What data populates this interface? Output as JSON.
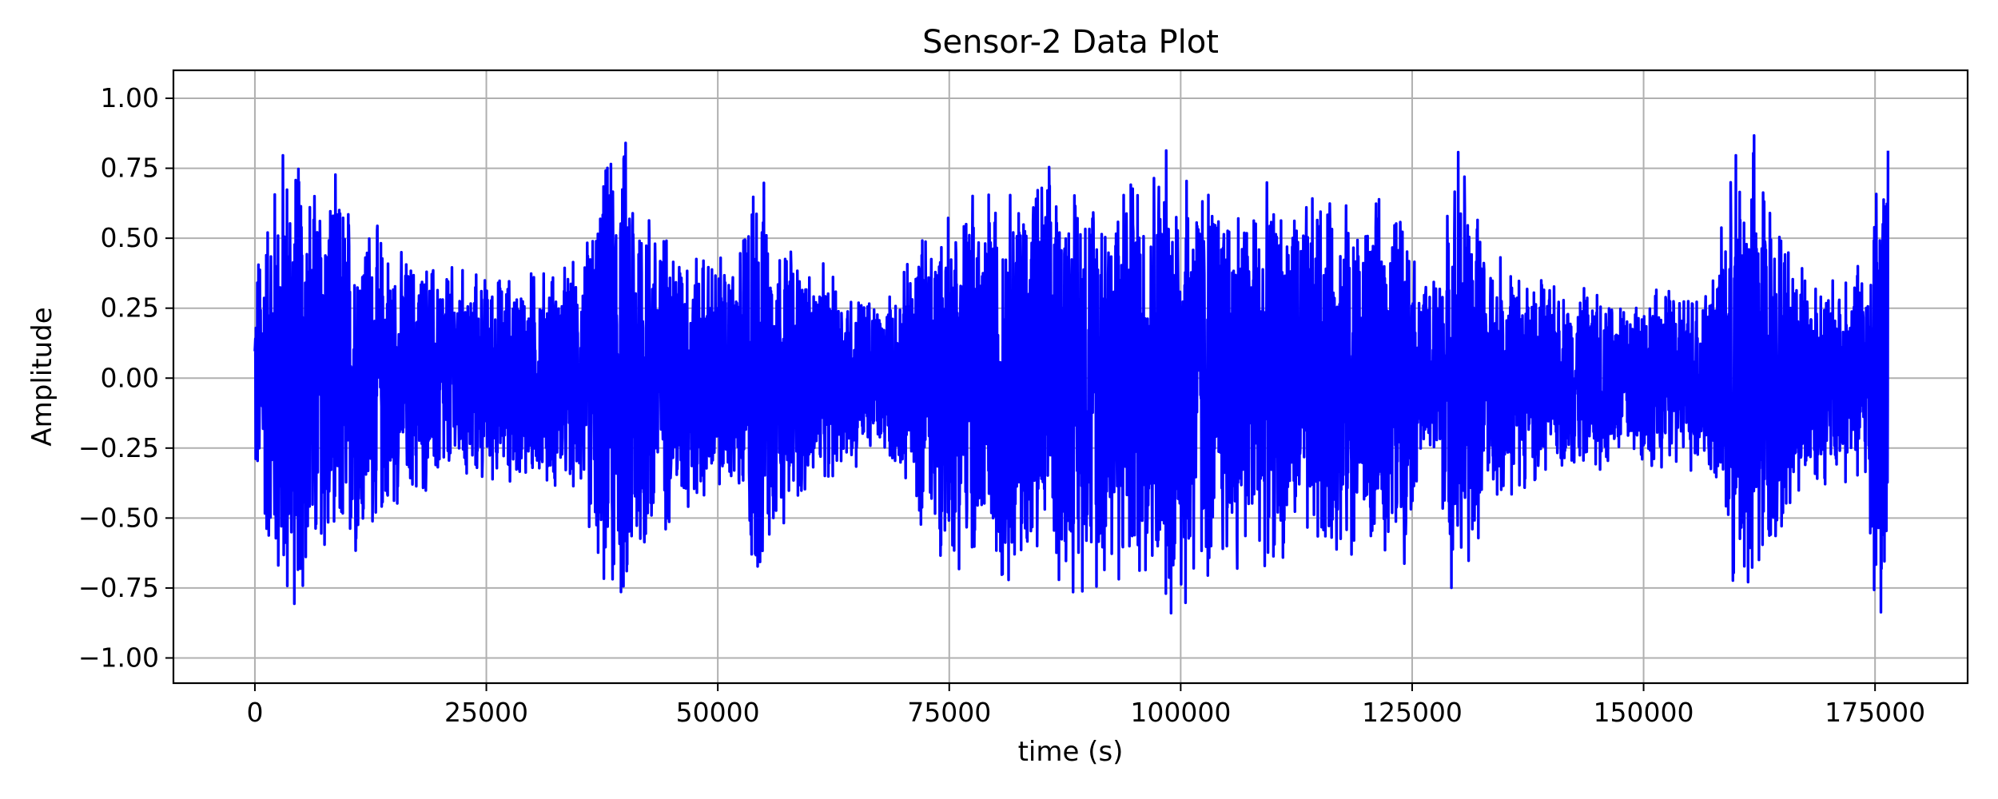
{
  "chart_data": {
    "type": "line",
    "title": "Sensor-2 Data Plot",
    "xlabel": "time (s)",
    "ylabel": "Amplitude",
    "xlim": [
      -8800,
      185000
    ],
    "ylim": [
      -1.09,
      1.1
    ],
    "xticks": [
      0,
      25000,
      50000,
      75000,
      100000,
      125000,
      150000,
      175000
    ],
    "xtick_labels": [
      "0",
      "25000",
      "50000",
      "75000",
      "100000",
      "125000",
      "150000",
      "175000"
    ],
    "yticks": [
      1.0,
      0.75,
      0.5,
      0.25,
      0.0,
      -0.25,
      -0.5,
      -0.75,
      -1.0
    ],
    "ytick_labels": [
      "1.00",
      "0.75",
      "0.50",
      "0.25",
      "0.00",
      "−0.25",
      "−0.50",
      "−0.75",
      "−1.00"
    ],
    "grid": true,
    "legend": false,
    "color": "#0000ff",
    "series": [
      {
        "x_range": [
          0,
          176400
        ],
        "envelope": {
          "t": [
            0,
            3000,
            6000,
            9000,
            12000,
            15000,
            20000,
            25000,
            30000,
            35000,
            38000,
            40000,
            44000,
            48000,
            52000,
            54000,
            56000,
            60000,
            65000,
            68000,
            70000,
            73000,
            78000,
            85000,
            90000,
            95000,
            100000,
            104000,
            110000,
            115000,
            120000,
            124000,
            126000,
            128000,
            130000,
            133000,
            136000,
            140000,
            145000,
            150000,
            155000,
            158000,
            160000,
            162000,
            164000,
            166000,
            170000,
            174000,
            175000,
            176400
          ],
          "amplitude": [
            0.45,
            0.95,
            0.8,
            0.75,
            0.65,
            0.5,
            0.45,
            0.4,
            0.42,
            0.45,
            0.85,
            0.95,
            0.6,
            0.5,
            0.45,
            0.9,
            0.6,
            0.45,
            0.35,
            0.3,
            0.4,
            0.65,
            0.75,
            0.8,
            0.8,
            0.8,
            0.95,
            0.75,
            0.7,
            0.7,
            0.65,
            0.7,
            0.35,
            0.45,
            0.95,
            0.5,
            0.45,
            0.35,
            0.35,
            0.35,
            0.35,
            0.45,
            0.9,
            0.95,
            0.7,
            0.5,
            0.4,
            0.45,
            0.95,
            0.9
          ]
        }
      }
    ]
  }
}
